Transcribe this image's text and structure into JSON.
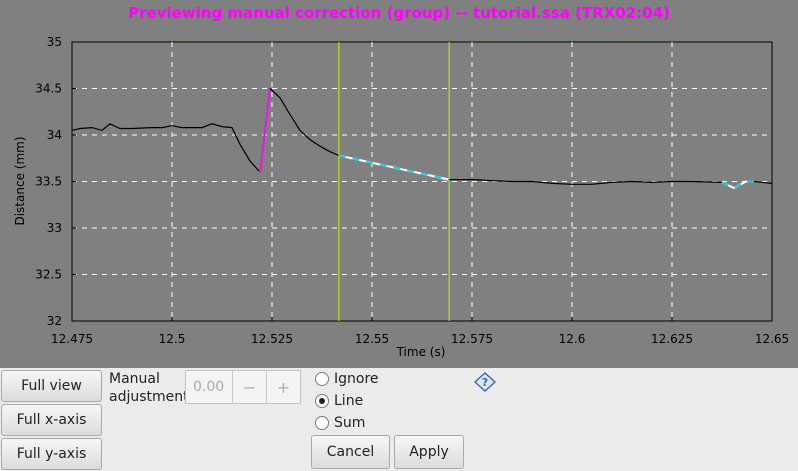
{
  "window_title": "Previewing manual correction (group) -- tutorial.ssa (TRX02:04)",
  "colors": {
    "title": "#ff00ff",
    "plot_bg": "#808080",
    "trace": "#000000",
    "selection_lines": "#b8e020",
    "correction_segment": "#dd20dd",
    "preview_dash_a": "#20d0e0",
    "preview_dash_b": "#ffffff"
  },
  "controls": {
    "full_view_label": "Full view",
    "full_x_label": "Full x-axis",
    "full_y_label": "Full y-axis",
    "manual_adjustment_label_1": "Manual",
    "manual_adjustment_label_2": "adjustment",
    "adjustment_value": "0.00",
    "minus_label": "−",
    "plus_label": "+",
    "radio_ignore": "Ignore",
    "radio_line": "Line",
    "radio_sum": "Sum",
    "selected_mode": "Line",
    "cancel_label": "Cancel",
    "apply_label": "Apply",
    "help_icon": "help-question-icon"
  },
  "chart_data": {
    "type": "line",
    "xlabel": "Time (s)",
    "ylabel": "Distance (mm)",
    "xlim": [
      12.475,
      12.65
    ],
    "ylim": [
      32,
      35
    ],
    "x_ticks": [
      12.475,
      12.5,
      12.525,
      12.55,
      12.575,
      12.6,
      12.625,
      12.65
    ],
    "x_tick_labels": [
      "12.475",
      "12.5",
      "12.525",
      "12.55",
      "12.575",
      "12.6",
      "12.625",
      "12.65"
    ],
    "y_ticks": [
      32,
      32.5,
      33,
      33.5,
      34,
      34.5,
      35
    ],
    "y_tick_labels": [
      "32",
      "32.5",
      "33",
      "33.5",
      "34",
      "34.5",
      "35"
    ],
    "grid": true,
    "selection_markers_x": [
      12.5417,
      12.5693
    ],
    "series": [
      {
        "role": "trace",
        "points": [
          [
            12.475,
            34.05
          ],
          [
            12.477,
            34.07
          ],
          [
            12.48,
            34.08
          ],
          [
            12.4825,
            34.05
          ],
          [
            12.4845,
            34.12
          ],
          [
            12.487,
            34.07
          ],
          [
            12.49,
            34.07
          ],
          [
            12.495,
            34.08
          ],
          [
            12.4975,
            34.08
          ],
          [
            12.5,
            34.1
          ],
          [
            12.5025,
            34.08
          ],
          [
            12.505,
            34.08
          ],
          [
            12.5075,
            34.08
          ],
          [
            12.51,
            34.12
          ],
          [
            12.5125,
            34.09
          ],
          [
            12.515,
            34.08
          ],
          [
            12.517,
            33.9
          ],
          [
            12.5195,
            33.72
          ],
          [
            12.522,
            33.6
          ]
        ]
      },
      {
        "role": "correction",
        "points": [
          [
            12.522,
            33.6
          ],
          [
            12.5245,
            34.5
          ]
        ]
      },
      {
        "role": "trace",
        "points": [
          [
            12.5245,
            34.5
          ],
          [
            12.527,
            34.4
          ],
          [
            12.5295,
            34.22
          ],
          [
            12.532,
            34.05
          ],
          [
            12.5345,
            33.95
          ],
          [
            12.537,
            33.88
          ],
          [
            12.5395,
            33.82
          ],
          [
            12.5417,
            33.78
          ]
        ]
      },
      {
        "role": "preview",
        "points": [
          [
            12.5417,
            33.78
          ],
          [
            12.5693,
            33.52
          ]
        ]
      },
      {
        "role": "trace",
        "points": [
          [
            12.5693,
            33.52
          ],
          [
            12.575,
            33.52
          ],
          [
            12.58,
            33.51
          ],
          [
            12.585,
            33.5
          ],
          [
            12.59,
            33.5
          ],
          [
            12.595,
            33.48
          ],
          [
            12.6,
            33.47
          ],
          [
            12.605,
            33.47
          ],
          [
            12.61,
            33.49
          ],
          [
            12.615,
            33.5
          ],
          [
            12.62,
            33.49
          ],
          [
            12.625,
            33.5
          ],
          [
            12.63,
            33.5
          ],
          [
            12.6375,
            33.49
          ]
        ]
      },
      {
        "role": "preview",
        "points": [
          [
            12.6375,
            33.49
          ],
          [
            12.6405,
            33.43
          ],
          [
            12.6435,
            33.5
          ],
          [
            12.6455,
            33.5
          ]
        ]
      },
      {
        "role": "trace",
        "points": [
          [
            12.6455,
            33.5
          ],
          [
            12.65,
            33.48
          ]
        ]
      }
    ]
  }
}
